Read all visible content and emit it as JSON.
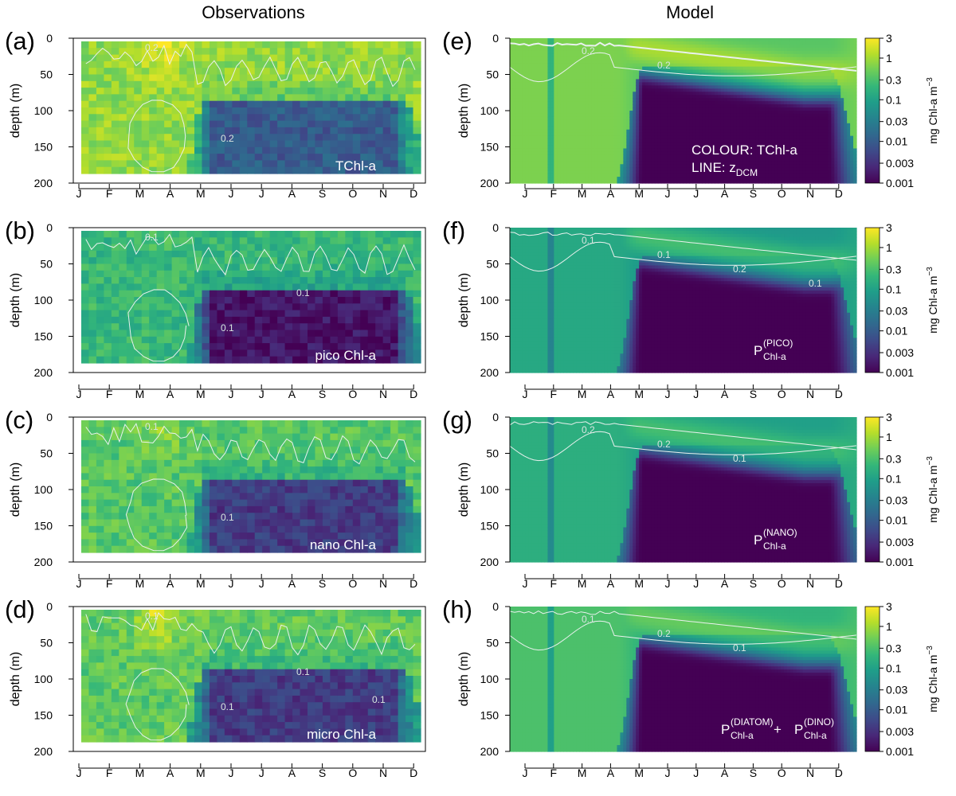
{
  "columns": {
    "left": "Observations",
    "right": "Model"
  },
  "colormap": [
    "#440154",
    "#482878",
    "#3e4a89",
    "#31688e",
    "#26828e",
    "#1f9e89",
    "#35b779",
    "#6ece58",
    "#b5de2b",
    "#fde725"
  ],
  "chart_data": [
    {
      "id": "a",
      "type": "heatmap",
      "panel_label": "(a)",
      "source": "observations",
      "inset_label": "TChl-a",
      "ylabel": "depth (m)",
      "yticks": [
        0,
        50,
        100,
        150,
        200
      ],
      "ylim": [
        200,
        0
      ],
      "months": [
        "J",
        "F",
        "M",
        "A",
        "M",
        "J",
        "J",
        "A",
        "S",
        "O",
        "N",
        "D"
      ],
      "contours": [
        "0.2",
        "0.2"
      ],
      "scale": {
        "surface": 0.8,
        "bloom": 2.2,
        "deep_winter": 0.25,
        "deep_summer": 0.01
      }
    },
    {
      "id": "b",
      "type": "heatmap",
      "panel_label": "(b)",
      "source": "observations",
      "inset_label": "pico Chl-a",
      "ylabel": "depth (m)",
      "yticks": [
        0,
        50,
        100,
        150,
        200
      ],
      "ylim": [
        200,
        0
      ],
      "months": [
        "J",
        "F",
        "M",
        "A",
        "M",
        "J",
        "J",
        "A",
        "S",
        "O",
        "N",
        "D"
      ],
      "contours": [
        "0.1",
        "0.1",
        "0.1"
      ],
      "scale": {
        "surface": 0.2,
        "bloom": 0.25,
        "deep_winter": 0.06,
        "deep_summer": 0.0015
      }
    },
    {
      "id": "c",
      "type": "heatmap",
      "panel_label": "(c)",
      "source": "observations",
      "inset_label": "nano Chl-a",
      "ylabel": "depth (m)",
      "yticks": [
        0,
        50,
        100,
        150,
        200
      ],
      "ylim": [
        200,
        0
      ],
      "months": [
        "J",
        "F",
        "M",
        "A",
        "M",
        "J",
        "J",
        "A",
        "S",
        "O",
        "N",
        "D"
      ],
      "contours": [
        "0.1",
        "0.1"
      ],
      "scale": {
        "surface": 0.35,
        "bloom": 0.8,
        "deep_winter": 0.12,
        "deep_summer": 0.004
      }
    },
    {
      "id": "d",
      "type": "heatmap",
      "panel_label": "(d)",
      "source": "observations",
      "inset_label": "micro Chl-a",
      "ylabel": "depth (m)",
      "yticks": [
        0,
        50,
        100,
        150,
        200
      ],
      "ylim": [
        200,
        0
      ],
      "months": [
        "J",
        "F",
        "M",
        "A",
        "M",
        "J",
        "J",
        "A",
        "S",
        "O",
        "N",
        "D"
      ],
      "contours": [
        "0.1",
        "0.1",
        "0.1",
        "0.1"
      ],
      "scale": {
        "surface": 0.4,
        "bloom": 1.6,
        "deep_winter": 0.12,
        "deep_summer": 0.004
      }
    },
    {
      "id": "e",
      "type": "heatmap",
      "panel_label": "(e)",
      "source": "model",
      "inset_label": "COLOUR: TChl-a",
      "inset_label2": "LINE: z",
      "inset_label2_sub": "DCM",
      "ylabel": "depth (m)",
      "yticks": [
        0,
        50,
        100,
        150,
        200
      ],
      "ylim": [
        200,
        0
      ],
      "months": [
        "J",
        "F",
        "M",
        "A",
        "M",
        "J",
        "J",
        "A",
        "S",
        "O",
        "N",
        "D"
      ],
      "contours": [
        "0.2",
        "0.2"
      ],
      "colorbar": {
        "label": "mg Chl-a m",
        "label_sup": "−3",
        "ticks": [
          "3",
          "1",
          "0.3",
          "0.1",
          "0.03",
          "0.01",
          "0.003",
          "0.001"
        ]
      },
      "scale": {
        "surface": 0.6,
        "dcm": 1.0,
        "deep_winter": 0.08,
        "deep_summer": 0.001
      }
    },
    {
      "id": "f",
      "type": "heatmap",
      "panel_label": "(f)",
      "source": "model",
      "inset_main": "P",
      "inset_sup": "(PICO)",
      "inset_sub": "Chl-a",
      "ylabel": "depth (m)",
      "yticks": [
        0,
        50,
        100,
        150,
        200
      ],
      "ylim": [
        200,
        0
      ],
      "months": [
        "J",
        "F",
        "M",
        "A",
        "M",
        "J",
        "J",
        "A",
        "S",
        "O",
        "N",
        "D"
      ],
      "contours": [
        "0.1",
        "0.1",
        "0.2",
        "0.1"
      ],
      "colorbar": {
        "label": "mg Chl-a m",
        "label_sup": "−3",
        "ticks": [
          "3",
          "1",
          "0.3",
          "0.1",
          "0.03",
          "0.01",
          "0.003",
          "0.001"
        ]
      },
      "scale": {
        "surface": 0.12,
        "dcm": 0.25,
        "deep_winter": 0.03,
        "deep_summer": 0.001
      }
    },
    {
      "id": "g",
      "type": "heatmap",
      "panel_label": "(g)",
      "source": "model",
      "inset_main": "P",
      "inset_sup": "(NANO)",
      "inset_sub": "Chl-a",
      "ylabel": "depth (m)",
      "yticks": [
        0,
        50,
        100,
        150,
        200
      ],
      "ylim": [
        200,
        0
      ],
      "months": [
        "J",
        "F",
        "M",
        "A",
        "M",
        "J",
        "J",
        "A",
        "S",
        "O",
        "N",
        "D"
      ],
      "contours": [
        "0.2",
        "0.2",
        "0.1"
      ],
      "colorbar": {
        "label": "mg Chl-a m",
        "label_sup": "−3",
        "ticks": [
          "3",
          "1",
          "0.3",
          "0.1",
          "0.03",
          "0.01",
          "0.003",
          "0.001"
        ]
      },
      "scale": {
        "surface": 0.15,
        "dcm": 0.25,
        "deep_winter": 0.03,
        "deep_summer": 0.001
      }
    },
    {
      "id": "h",
      "type": "heatmap",
      "panel_label": "(h)",
      "source": "model",
      "inset_main": "P",
      "inset_sup": "(DIATOM)",
      "inset_sub": "Chl-a",
      "inset_plus": " + ",
      "inset_main2": "P",
      "inset_sup2": "(DINO)",
      "inset_sub2": "Chl-a",
      "ylabel": "depth (m)",
      "yticks": [
        0,
        50,
        100,
        150,
        200
      ],
      "ylim": [
        200,
        0
      ],
      "months": [
        "J",
        "F",
        "M",
        "A",
        "M",
        "J",
        "J",
        "A",
        "S",
        "O",
        "N",
        "D"
      ],
      "contours": [
        "0.1",
        "0.2",
        "0.1"
      ],
      "colorbar": {
        "label": "mg Chl-a m",
        "label_sup": "−3",
        "ticks": [
          "3",
          "1",
          "0.3",
          "0.1",
          "0.03",
          "0.01",
          "0.003",
          "0.001"
        ]
      },
      "scale": {
        "surface": 0.3,
        "dcm": 0.4,
        "deep_winter": 0.06,
        "deep_summer": 0.001
      }
    }
  ]
}
